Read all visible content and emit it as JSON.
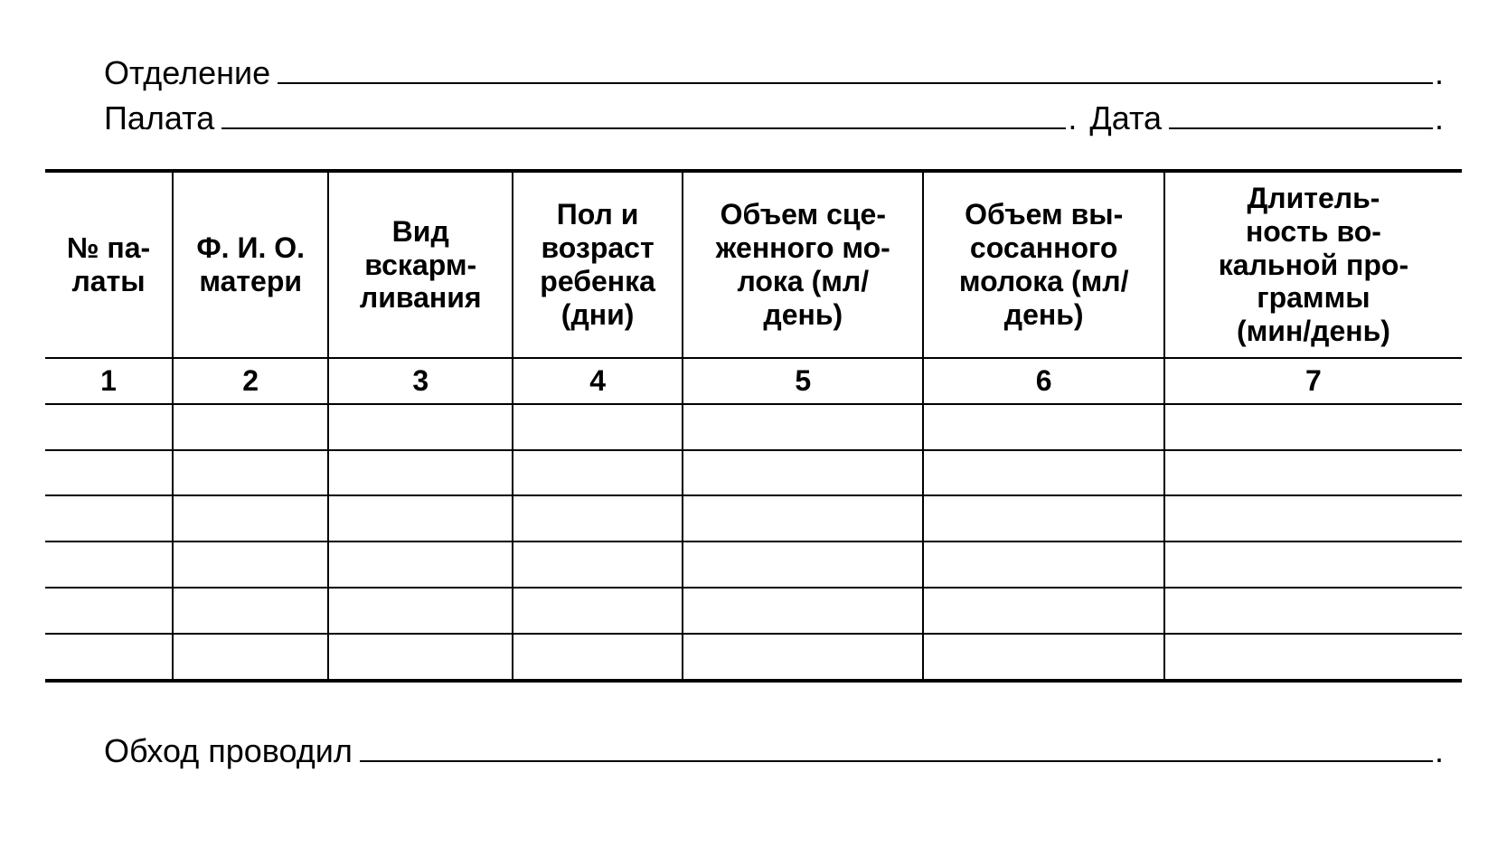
{
  "header": {
    "department_label": "Отделение",
    "ward_label": "Палата",
    "date_label": "Дата"
  },
  "table": {
    "type": "table",
    "border_color": "#000000",
    "background_color": "#ffffff",
    "header_fontweight": "bold",
    "header_fontsize": 32,
    "outer_border_width": 4,
    "inner_border_width": 2,
    "columns": [
      {
        "header": "№ па-\nлаты",
        "number": "1",
        "width_pct": 9
      },
      {
        "header": "Ф. И. О.\nматери",
        "number": "2",
        "width_pct": 11
      },
      {
        "header": "Вид\nвскарм-\nливания",
        "number": "3",
        "width_pct": 13
      },
      {
        "header": "Пол и\nвозраст\nребенка\n(дни)",
        "number": "4",
        "width_pct": 12
      },
      {
        "header": "Объем сце-\nженного мо-\nлока (мл/\nдень)",
        "number": "5",
        "width_pct": 17
      },
      {
        "header": "Объем вы-\nсосанного\nмолока (мл/\nдень)",
        "number": "6",
        "width_pct": 17
      },
      {
        "header": "Длитель-\nность во-\nкальной про-\nграммы\n(мин/день)",
        "number": "7",
        "width_pct": 21
      }
    ],
    "blank_row_count": 6
  },
  "footer": {
    "conducted_by_label": "Обход проводил"
  },
  "style": {
    "page_bg": "#ffffff",
    "text_color": "#000000",
    "label_fontsize": 36,
    "underline_width": 2
  }
}
